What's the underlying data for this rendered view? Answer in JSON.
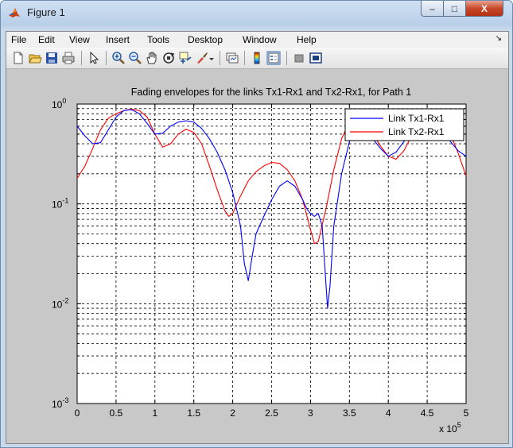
{
  "window": {
    "title": "Figure 1",
    "minimize_label": "–",
    "maximize_label": "□",
    "close_label": "X"
  },
  "menubar": {
    "items": [
      "File",
      "Edit",
      "View",
      "Insert",
      "Tools",
      "Desktop",
      "Window",
      "Help"
    ],
    "overflow": "↘"
  },
  "toolbar": {
    "icons": [
      "new-figure-icon",
      "open-file-icon",
      "save-icon",
      "print-icon",
      "select-arrow-icon",
      "zoom-in-icon",
      "zoom-out-icon",
      "pan-hand-icon",
      "rotate-3d-icon",
      "data-cursor-icon",
      "brush-icon",
      "link-plot-icon",
      "colorbar-icon",
      "legend-icon",
      "hide-plot-tools-icon",
      "show-plot-tools-icon"
    ]
  },
  "chart_data": {
    "type": "line",
    "title": "Fading envelopes for the links Tx1-Rx1 and Tx2-Rx1, for Path 1",
    "xlabel": "",
    "ylabel": "",
    "x_multiplier": "x 10",
    "x_multiplier_exponent": "5",
    "xlim": [
      0,
      500000
    ],
    "ylim": [
      0.001,
      1
    ],
    "yscale": "log",
    "grid": true,
    "legend_position": "top-right",
    "xticks": [
      0,
      50000,
      100000,
      150000,
      200000,
      250000,
      300000,
      350000,
      400000,
      450000,
      500000
    ],
    "xtick_labels": [
      "0",
      "0.5",
      "1",
      "1.5",
      "2",
      "2.5",
      "3",
      "3.5",
      "4",
      "4.5",
      "5"
    ],
    "ytick_labels": [
      {
        "base": "10",
        "exp": "-3",
        "value": 0.001
      },
      {
        "base": "10",
        "exp": "-2",
        "value": 0.01
      },
      {
        "base": "10",
        "exp": "-1",
        "value": 0.1
      },
      {
        "base": "10",
        "exp": "0",
        "value": 1
      }
    ],
    "series": [
      {
        "name": "Link Tx1-Rx1",
        "color": "#0000ff",
        "x": [
          0,
          10000,
          20000,
          30000,
          40000,
          50000,
          60000,
          70000,
          80000,
          90000,
          100000,
          110000,
          120000,
          130000,
          140000,
          150000,
          160000,
          170000,
          180000,
          190000,
          200000,
          210000,
          215000,
          220000,
          225000,
          230000,
          240000,
          250000,
          260000,
          270000,
          280000,
          290000,
          295000,
          300000,
          305000,
          310000,
          315000,
          320000,
          322000,
          325000,
          330000,
          340000,
          350000,
          360000,
          370000,
          380000,
          390000,
          400000,
          410000,
          420000,
          430000,
          440000,
          450000,
          460000,
          470000,
          480000,
          490000,
          500000
        ],
        "y": [
          0.6,
          0.48,
          0.4,
          0.41,
          0.55,
          0.74,
          0.86,
          0.88,
          0.8,
          0.64,
          0.5,
          0.51,
          0.6,
          0.66,
          0.68,
          0.66,
          0.57,
          0.45,
          0.33,
          0.22,
          0.13,
          0.06,
          0.025,
          0.017,
          0.03,
          0.05,
          0.075,
          0.11,
          0.15,
          0.17,
          0.15,
          0.11,
          0.09,
          0.08,
          0.075,
          0.08,
          0.06,
          0.015,
          0.009,
          0.015,
          0.06,
          0.2,
          0.42,
          0.6,
          0.55,
          0.45,
          0.36,
          0.3,
          0.33,
          0.42,
          0.52,
          0.64,
          0.7,
          0.66,
          0.52,
          0.42,
          0.34,
          0.3
        ]
      },
      {
        "name": "Link Tx2-Rx1",
        "color": "#ff0000",
        "x": [
          0,
          10000,
          20000,
          30000,
          40000,
          50000,
          60000,
          70000,
          80000,
          90000,
          100000,
          110000,
          120000,
          130000,
          140000,
          150000,
          160000,
          170000,
          180000,
          190000,
          195000,
          200000,
          210000,
          220000,
          230000,
          240000,
          250000,
          260000,
          270000,
          280000,
          290000,
          300000,
          305000,
          310000,
          320000,
          330000,
          340000,
          350000,
          360000,
          370000,
          380000,
          390000,
          400000,
          410000,
          420000,
          430000,
          440000,
          450000,
          460000,
          470000,
          480000,
          490000,
          500000
        ],
        "y": [
          0.18,
          0.24,
          0.36,
          0.55,
          0.72,
          0.8,
          0.86,
          0.89,
          0.86,
          0.74,
          0.5,
          0.37,
          0.4,
          0.5,
          0.56,
          0.52,
          0.4,
          0.24,
          0.14,
          0.085,
          0.075,
          0.08,
          0.12,
          0.17,
          0.21,
          0.24,
          0.26,
          0.255,
          0.22,
          0.17,
          0.11,
          0.055,
          0.04,
          0.042,
          0.09,
          0.22,
          0.45,
          0.66,
          0.72,
          0.64,
          0.5,
          0.38,
          0.3,
          0.28,
          0.34,
          0.48,
          0.62,
          0.68,
          0.7,
          0.64,
          0.5,
          0.32,
          0.19
        ]
      }
    ]
  }
}
